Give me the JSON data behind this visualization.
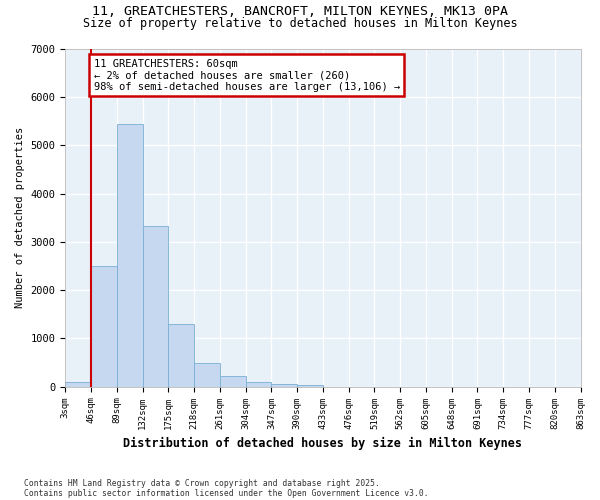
{
  "title_line1": "11, GREATCHESTERS, BANCROFT, MILTON KEYNES, MK13 0PA",
  "title_line2": "Size of property relative to detached houses in Milton Keynes",
  "xlabel": "Distribution of detached houses by size in Milton Keynes",
  "ylabel": "Number of detached properties",
  "bar_color": "#c5d8f0",
  "bar_edge_color": "#7aafd4",
  "bins": [
    "3sqm",
    "46sqm",
    "89sqm",
    "132sqm",
    "175sqm",
    "218sqm",
    "261sqm",
    "304sqm",
    "347sqm",
    "390sqm",
    "433sqm",
    "476sqm",
    "519sqm",
    "562sqm",
    "605sqm",
    "648sqm",
    "691sqm",
    "734sqm",
    "777sqm",
    "820sqm",
    "863sqm"
  ],
  "values": [
    90,
    2500,
    5450,
    3330,
    1290,
    480,
    215,
    100,
    55,
    30,
    0,
    0,
    0,
    0,
    0,
    0,
    0,
    0,
    0,
    0
  ],
  "vline_x": 1,
  "vline_color": "#cc0000",
  "annotation_text": "11 GREATCHESTERS: 60sqm\n← 2% of detached houses are smaller (260)\n98% of semi-detached houses are larger (13,106) →",
  "annotation_box_edgecolor": "#cc0000",
  "ylim": [
    0,
    7000
  ],
  "yticks": [
    0,
    1000,
    2000,
    3000,
    4000,
    5000,
    6000,
    7000
  ],
  "footer_line1": "Contains HM Land Registry data © Crown copyright and database right 2025.",
  "footer_line2": "Contains public sector information licensed under the Open Government Licence v3.0.",
  "background_color": "#e8f0f8",
  "grid_color": "#ffffff",
  "fig_bg_color": "#ffffff"
}
